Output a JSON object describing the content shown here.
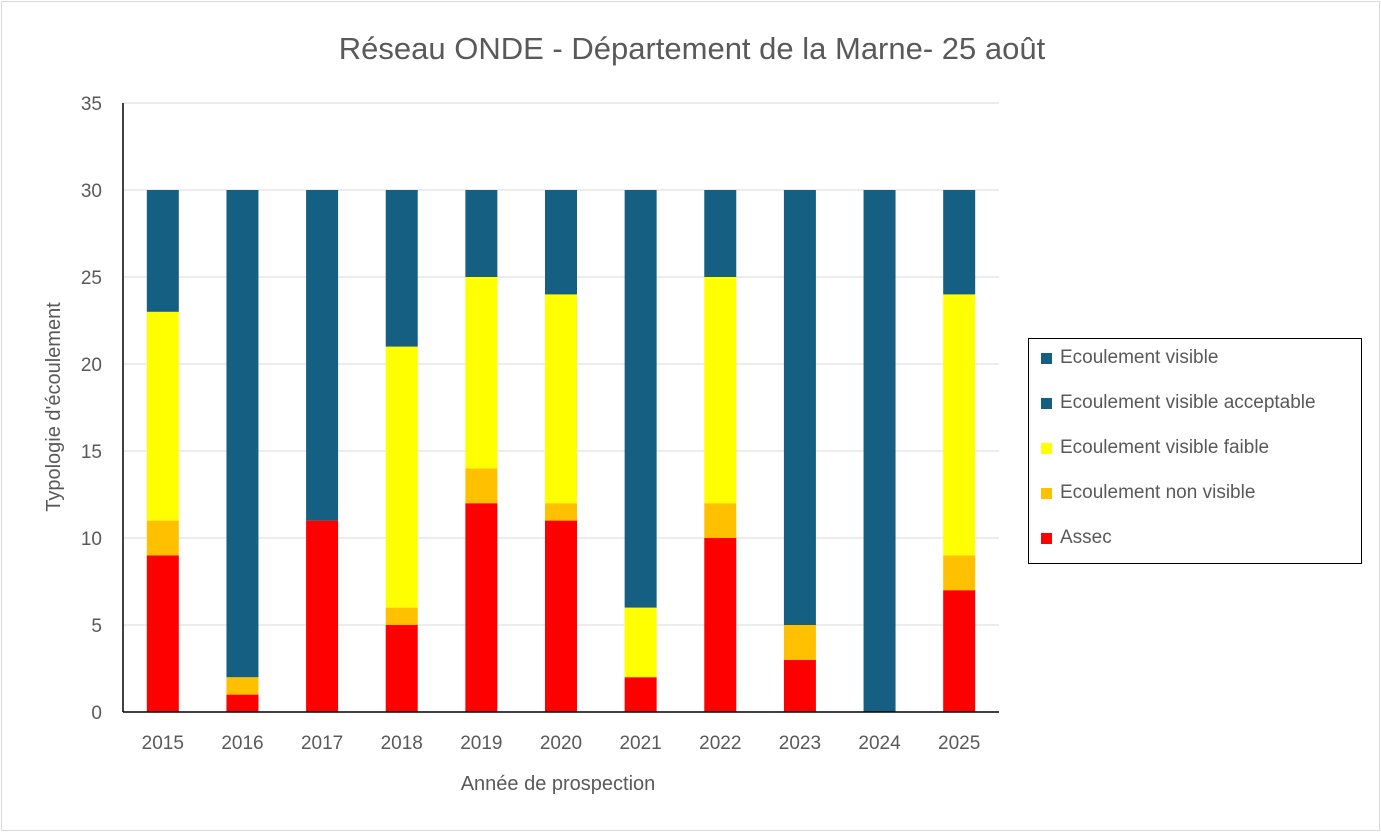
{
  "chart_data": {
    "type": "bar",
    "stacked": true,
    "title": "Réseau ONDE - Département de la Marne- 25 août",
    "xlabel": "Année de prospection",
    "ylabel": "Typologie d'écoulement",
    "ylim": [
      0,
      35
    ],
    "yticks": [
      "0",
      "5",
      "10",
      "15",
      "20",
      "25",
      "30",
      "35"
    ],
    "grid": true,
    "legend_position": "right",
    "categories": [
      "2015",
      "2016",
      "2017",
      "2018",
      "2019",
      "2020",
      "2021",
      "2022",
      "2023",
      "2024",
      "2025"
    ],
    "series": [
      {
        "name": "Assec",
        "color": "#ff0000",
        "values": [
          9,
          1,
          11,
          5,
          12,
          11,
          2,
          10,
          3,
          0,
          7
        ]
      },
      {
        "name": "Ecoulement non visible",
        "color": "#ffc000",
        "values": [
          2,
          1,
          0,
          1,
          2,
          1,
          0,
          2,
          2,
          0,
          2
        ]
      },
      {
        "name": "Ecoulement visible faible",
        "color": "#ffff00",
        "values": [
          12,
          0,
          0,
          15,
          11,
          12,
          4,
          13,
          0,
          0,
          15
        ]
      },
      {
        "name": "Ecoulement visible acceptable",
        "color": "#156082",
        "values": [
          7,
          28,
          19,
          9,
          5,
          6,
          24,
          5,
          25,
          30,
          6
        ]
      },
      {
        "name": "Ecoulement visible",
        "color": "#156082",
        "values": [
          0,
          0,
          0,
          0,
          0,
          0,
          0,
          0,
          0,
          0,
          0
        ]
      }
    ],
    "legend_order": [
      "Ecoulement visible",
      "Ecoulement visible acceptable",
      "Ecoulement visible faible",
      "Ecoulement non visible",
      "Assec"
    ]
  }
}
